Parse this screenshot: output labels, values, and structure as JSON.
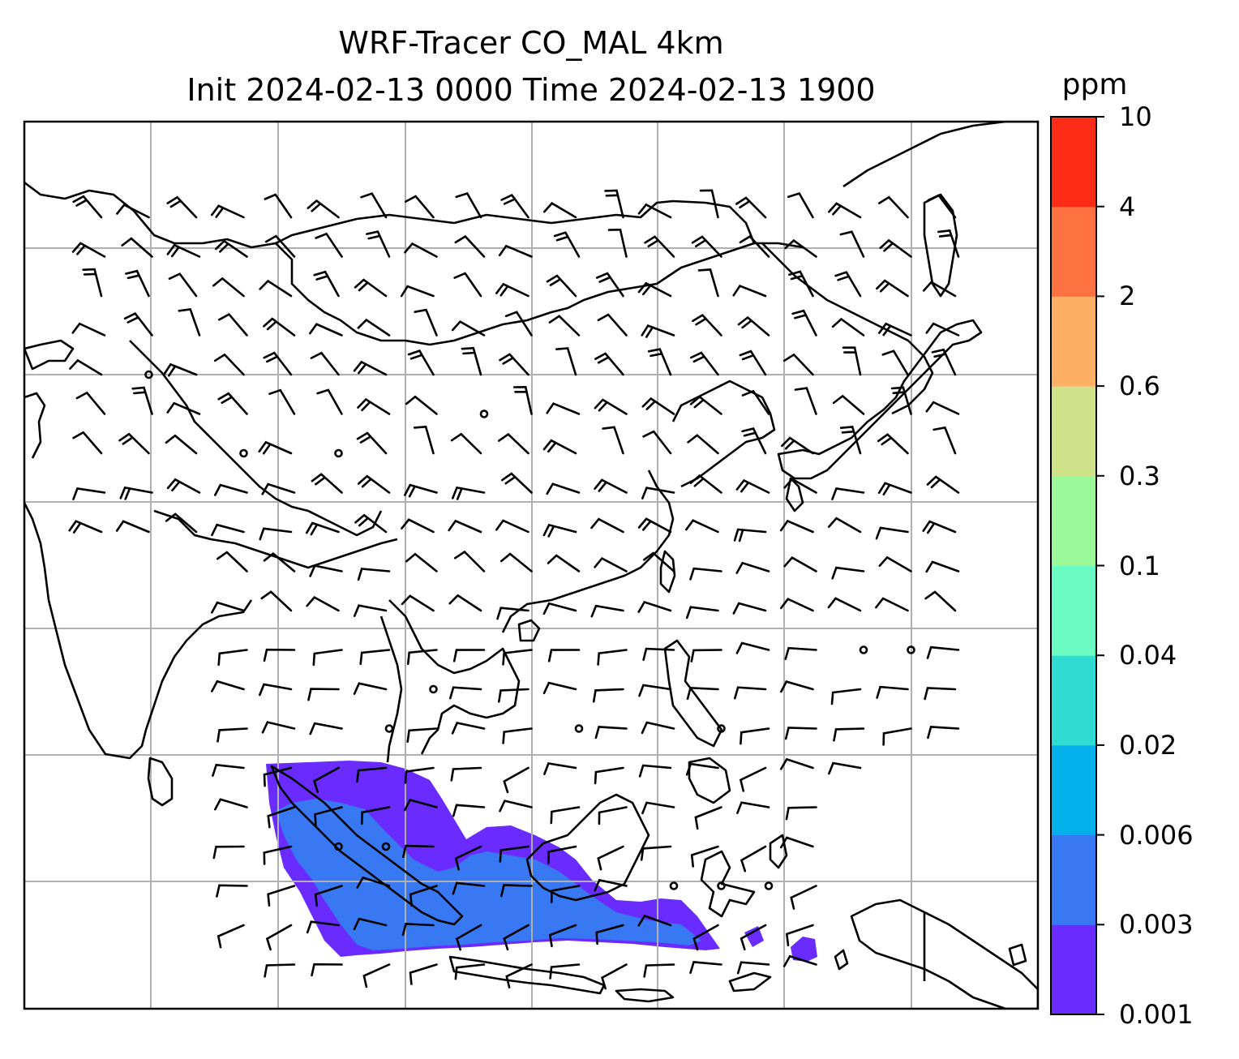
{
  "title": {
    "line1": "WRF-Tracer CO_MAL 4km",
    "line2": "Init 2024-02-13 0000 Time 2024-02-13 1900"
  },
  "colorbar": {
    "unit": "ppm",
    "levels": [
      "0.001",
      "0.003",
      "0.006",
      "0.02",
      "0.04",
      "0.1",
      "0.3",
      "0.6",
      "2",
      "4",
      "10"
    ],
    "colors": [
      "#6a2bff",
      "#3878f2",
      "#03b0ea",
      "#2fdcd2",
      "#6afcc2",
      "#9cf99a",
      "#cfe289",
      "#fdb064",
      "#fe7140",
      "#fe2c17"
    ]
  },
  "map": {
    "tracer_colors": {
      "low": "#6a2bff",
      "mid": "#3878f2"
    },
    "barb_color": "#000000",
    "coast_color": "#000000",
    "grid_color": "#b0b0b0"
  }
}
